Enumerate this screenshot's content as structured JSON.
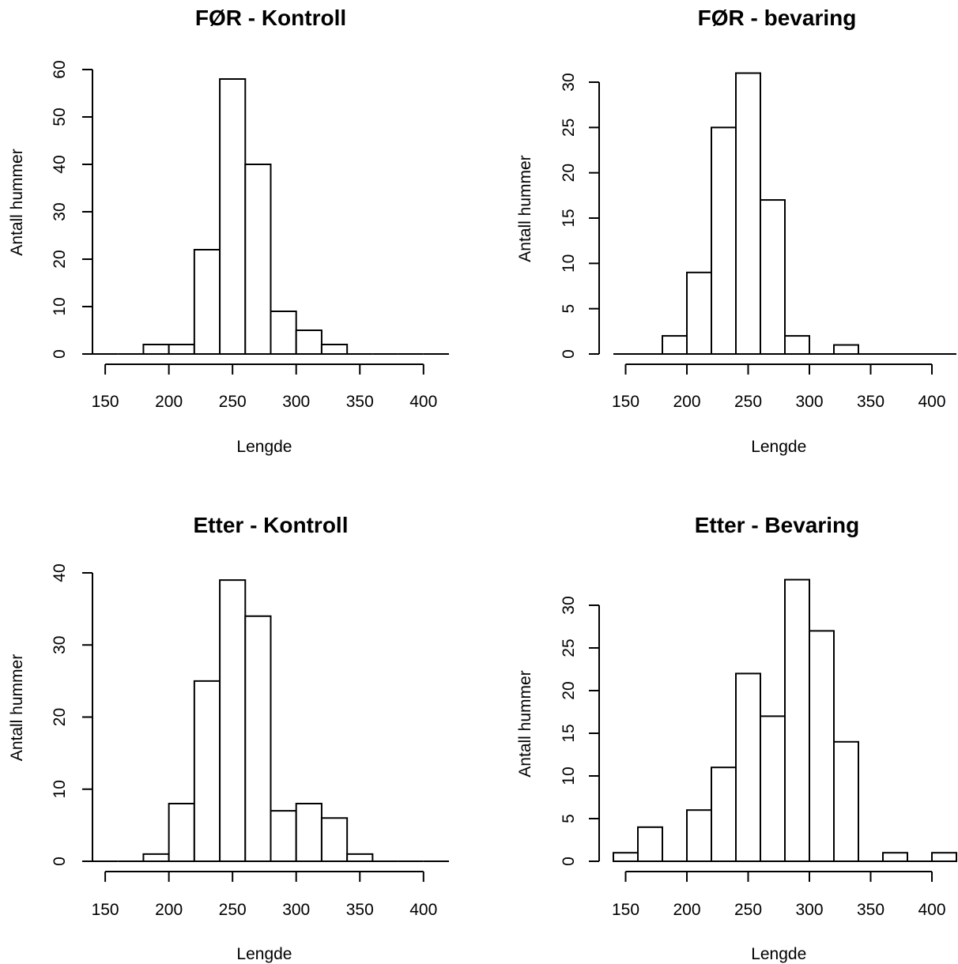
{
  "chart_data": [
    {
      "type": "bar",
      "title": "FØR - Kontroll",
      "xlabel": "Lengde",
      "ylabel": "Antall hummer",
      "bin_edges": [
        140,
        160,
        180,
        200,
        220,
        240,
        260,
        280,
        300,
        320,
        340,
        360,
        380,
        400,
        420
      ],
      "values": [
        0,
        0,
        2,
        2,
        22,
        58,
        40,
        9,
        5,
        2,
        0,
        0,
        0,
        0
      ],
      "xticks": [
        150,
        200,
        250,
        300,
        350,
        400
      ],
      "yticks": [
        0,
        10,
        20,
        30,
        40,
        50,
        60
      ],
      "xlim": [
        140,
        420
      ],
      "ylim": [
        0,
        60
      ]
    },
    {
      "type": "bar",
      "title": "FØR - bevaring",
      "xlabel": "Lengde",
      "ylabel": "Antall hummer",
      "bin_edges": [
        140,
        160,
        180,
        200,
        220,
        240,
        260,
        280,
        300,
        320,
        340,
        360,
        380,
        400,
        420
      ],
      "values": [
        0,
        0,
        2,
        9,
        25,
        31,
        17,
        2,
        0,
        1,
        0,
        0,
        0,
        0
      ],
      "xticks": [
        150,
        200,
        250,
        300,
        350,
        400
      ],
      "yticks": [
        0,
        5,
        10,
        15,
        20,
        25,
        30
      ],
      "xlim": [
        140,
        420
      ],
      "ylim": [
        0,
        30
      ]
    },
    {
      "type": "bar",
      "title": "Etter - Kontroll",
      "xlabel": "Lengde",
      "ylabel": "Antall hummer",
      "bin_edges": [
        140,
        160,
        180,
        200,
        220,
        240,
        260,
        280,
        300,
        320,
        340,
        360,
        380,
        400,
        420
      ],
      "values": [
        0,
        0,
        1,
        8,
        25,
        39,
        34,
        7,
        8,
        6,
        1,
        0,
        0,
        0
      ],
      "xticks": [
        150,
        200,
        250,
        300,
        350,
        400
      ],
      "yticks": [
        0,
        10,
        20,
        30,
        40
      ],
      "xlim": [
        140,
        420
      ],
      "ylim": [
        0,
        40
      ]
    },
    {
      "type": "bar",
      "title": "Etter - Bevaring",
      "xlabel": "Lengde",
      "ylabel": "Antall hummer",
      "bin_edges": [
        140,
        160,
        180,
        200,
        220,
        240,
        260,
        280,
        300,
        320,
        340,
        360,
        380,
        400,
        420
      ],
      "values": [
        1,
        4,
        0,
        6,
        11,
        22,
        17,
        33,
        27,
        14,
        0,
        1,
        0,
        1
      ],
      "xticks": [
        150,
        200,
        250,
        300,
        350,
        400
      ],
      "yticks": [
        0,
        5,
        10,
        15,
        20,
        25,
        30
      ],
      "xlim": [
        140,
        420
      ],
      "ylim": [
        0,
        30
      ]
    }
  ]
}
